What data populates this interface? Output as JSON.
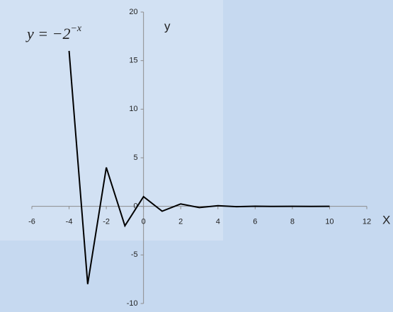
{
  "chart_data": {
    "type": "line",
    "title": "y = −2",
    "title_exponent": "−x",
    "x_label": "X",
    "y_label": "y",
    "x": [
      -4,
      -3,
      -2,
      -1,
      0,
      1,
      2,
      3,
      4,
      5,
      6,
      7,
      8,
      9,
      10
    ],
    "values": [
      16,
      -8,
      4,
      -2,
      1,
      -0.5,
      0.25,
      -0.125,
      0.0625,
      -0.03125,
      0.015625,
      -0.0078125,
      0.00390625,
      -0.001953125,
      0.0009765625
    ],
    "color": "#000000",
    "xlim": [
      -6,
      12
    ],
    "xticks": [
      -6,
      -4,
      -2,
      0,
      2,
      4,
      6,
      8,
      10,
      12
    ],
    "ylim": [
      -10,
      20
    ],
    "yticks": [
      -10,
      -5,
      0,
      5,
      10,
      15,
      20
    ]
  }
}
